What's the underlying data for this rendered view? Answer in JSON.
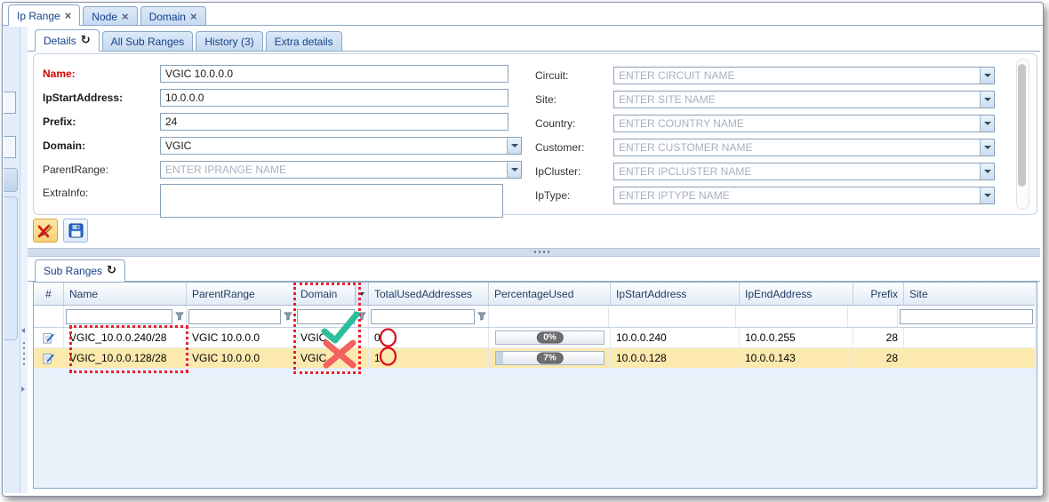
{
  "icons": {
    "close": "×",
    "refresh": "↻"
  },
  "top_tabs": [
    {
      "label": "Ip Range",
      "active": true
    },
    {
      "label": "Node",
      "active": false
    },
    {
      "label": "Domain",
      "active": false
    }
  ],
  "detail_tabs": [
    {
      "label": "Details",
      "active": true
    },
    {
      "label": "All Sub Ranges",
      "active": false
    },
    {
      "label": "History (3)",
      "active": false
    },
    {
      "label": "Extra details",
      "active": false
    }
  ],
  "form": {
    "left": [
      {
        "label": "Name:",
        "value": "VGIC 10.0.0.0"
      },
      {
        "label": "IpStartAddress:",
        "value": "10.0.0.0"
      },
      {
        "label": "Prefix:",
        "value": "24"
      },
      {
        "label": "Domain:",
        "value": "VGIC"
      },
      {
        "label": "ParentRange:",
        "placeholder": "ENTER IPRANGE NAME"
      },
      {
        "label": "ExtraInfo:",
        "value": ""
      }
    ],
    "right": [
      {
        "label": "Circuit:",
        "placeholder": "ENTER CIRCUIT NAME"
      },
      {
        "label": "Site:",
        "placeholder": "ENTER SITE NAME"
      },
      {
        "label": "Country:",
        "placeholder": "ENTER COUNTRY NAME"
      },
      {
        "label": "Customer:",
        "placeholder": "ENTER CUSTOMER NAME"
      },
      {
        "label": "IpCluster:",
        "placeholder": "ENTER IPCLUSTER NAME"
      },
      {
        "label": "IpType:",
        "placeholder": "ENTER IPTYPE NAME"
      }
    ]
  },
  "subranges": {
    "tab_label": "Sub Ranges",
    "columns": [
      "#",
      "Name",
      "ParentRange",
      "Domain",
      "TotalUsedAddresses",
      "PercentageUsed",
      "IpStartAddress",
      "IpEndAddress",
      "Prefix",
      "Site"
    ],
    "rows": [
      {
        "name": "VGIC_10.0.0.240/28",
        "parent_range": "VGIC 10.0.0.0",
        "domain": "VGIC",
        "domain_status": "check",
        "total_used": "0",
        "percentage_label": "0%",
        "percentage_value": 0,
        "ip_start": "10.0.0.240",
        "ip_end": "10.0.0.255",
        "prefix": "28",
        "site": "",
        "selected": false
      },
      {
        "name": "VGIC_10.0.0.128/28",
        "parent_range": "VGIC 10.0.0.0",
        "domain": "VGIC",
        "domain_status": "cross",
        "total_used": "1",
        "percentage_label": "7%",
        "percentage_value": 7,
        "ip_start": "10.0.0.128",
        "ip_end": "10.0.0.143",
        "prefix": "28",
        "site": "",
        "selected": true
      }
    ]
  },
  "colors": {
    "tab_text": "#15428b",
    "selected_row": "#fbe9ae",
    "annotation_red": "#e8212d",
    "annotation_green": "#2cbf9c",
    "annotation_cross_red": "#f2625e",
    "required_label": "#d40000"
  }
}
